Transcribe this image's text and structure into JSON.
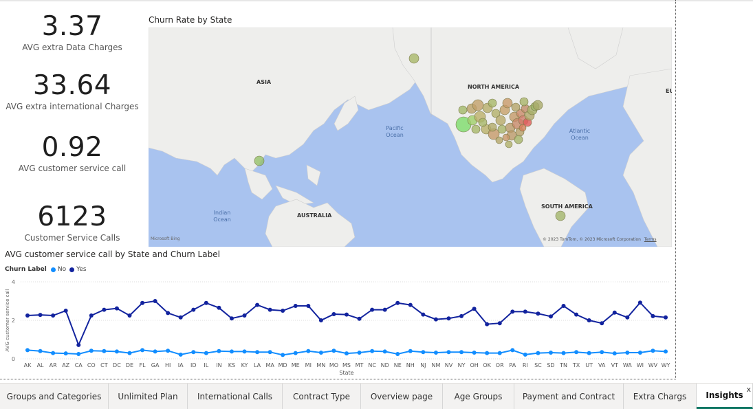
{
  "cards": [
    {
      "value": "3.37",
      "label": "AVG extra Data Charges"
    },
    {
      "value": "33.64",
      "label": "AVG extra international Charges"
    },
    {
      "value": "0.92",
      "label": "AVG customer service call"
    },
    {
      "value": "6123",
      "label": "Customer Service Calls"
    }
  ],
  "map": {
    "title": "Churn Rate by State",
    "labels": {
      "asia": "ASIA",
      "north_america": "NORTH AMERICA",
      "pacific_ocean": "Pacific Ocean",
      "atlantic_ocean": "Atlantic Ocean",
      "indian_ocean": "Indian Ocean",
      "australia": "AUSTRALIA",
      "south_america": "SOUTH AMERICA",
      "europe_fragment": "EU"
    },
    "attribution_left": "Microsoft Bing",
    "attribution_right": "© 2023 TomTom, © 2023 Microsoft Corporation",
    "terms": "Terms"
  },
  "chart_data": {
    "type": "line",
    "title": "AVG customer service call by State and Churn Label",
    "xlabel": "State",
    "ylabel": "AVG customer service call",
    "legend_title": "Churn Label",
    "ylim": [
      0,
      4
    ],
    "yticks": [
      0,
      2,
      4
    ],
    "legend_position": "top-left",
    "grid": true,
    "categories": [
      "AK",
      "AL",
      "AR",
      "AZ",
      "CA",
      "CO",
      "CT",
      "DC",
      "DE",
      "FL",
      "GA",
      "HI",
      "IA",
      "ID",
      "IL",
      "IN",
      "KS",
      "KY",
      "LA",
      "MA",
      "MD",
      "ME",
      "MI",
      "MN",
      "MO",
      "MS",
      "MT",
      "NC",
      "ND",
      "NE",
      "NH",
      "NJ",
      "NM",
      "NV",
      "NY",
      "OH",
      "OK",
      "OR",
      "PA",
      "RI",
      "SC",
      "SD",
      "TN",
      "TX",
      "UT",
      "VA",
      "VT",
      "WA",
      "WI",
      "WV",
      "WY"
    ],
    "series": [
      {
        "name": "No",
        "color": "#118dff",
        "values": [
          0.45,
          0.4,
          0.3,
          0.28,
          0.25,
          0.42,
          0.4,
          0.38,
          0.3,
          0.45,
          0.38,
          0.42,
          0.22,
          0.35,
          0.3,
          0.4,
          0.38,
          0.38,
          0.35,
          0.35,
          0.2,
          0.3,
          0.4,
          0.32,
          0.42,
          0.28,
          0.32,
          0.4,
          0.38,
          0.25,
          0.4,
          0.35,
          0.32,
          0.35,
          0.35,
          0.32,
          0.3,
          0.3,
          0.45,
          0.22,
          0.3,
          0.32,
          0.3,
          0.35,
          0.3,
          0.35,
          0.28,
          0.32,
          0.32,
          0.42,
          0.38
        ]
      },
      {
        "name": "Yes",
        "color": "#12239e",
        "values": [
          2.25,
          2.28,
          2.25,
          2.5,
          0.72,
          2.25,
          2.55,
          2.62,
          2.25,
          2.9,
          3.0,
          2.38,
          2.15,
          2.55,
          2.9,
          2.65,
          2.1,
          2.25,
          2.8,
          2.55,
          2.5,
          2.75,
          2.75,
          2.0,
          2.32,
          2.3,
          2.08,
          2.55,
          2.55,
          2.9,
          2.8,
          2.3,
          2.05,
          2.1,
          2.22,
          2.6,
          1.8,
          1.85,
          2.45,
          2.45,
          2.35,
          2.2,
          2.75,
          2.3,
          2.0,
          1.85,
          2.4,
          2.15,
          2.92,
          2.22,
          2.15
        ]
      }
    ]
  },
  "tabs": [
    {
      "label": "Groups and Categories"
    },
    {
      "label": "Unlimited Plan"
    },
    {
      "label": "International Calls"
    },
    {
      "label": "Contract Type"
    },
    {
      "label": "Overview page"
    },
    {
      "label": "Age Groups"
    },
    {
      "label": "Payment and Contract"
    },
    {
      "label": "Extra Chargs"
    },
    {
      "label": "Insights",
      "active": true
    }
  ],
  "tab_close": "x",
  "colors": {
    "accent": "#117865",
    "no": "#118dff",
    "yes": "#12239e"
  }
}
